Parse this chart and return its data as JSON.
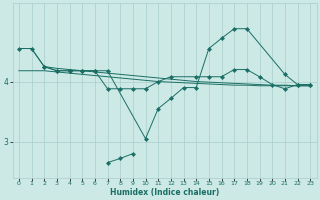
{
  "xlabel": "Humidex (Indice chaleur)",
  "bg_color": "#cce9e5",
  "grid_color": "#aacfcb",
  "line_color": "#1a6e65",
  "xlim": [
    -0.5,
    23.5
  ],
  "ylim": [
    2.4,
    5.3
  ],
  "yticks": [
    3,
    4
  ],
  "xticks": [
    0,
    1,
    2,
    3,
    4,
    5,
    6,
    7,
    8,
    9,
    10,
    11,
    12,
    13,
    14,
    15,
    16,
    17,
    18,
    19,
    20,
    21,
    22,
    23
  ],
  "line1_x": [
    0,
    1,
    2,
    3,
    4,
    5,
    6,
    7,
    10,
    11,
    12,
    13,
    14,
    15,
    16,
    17,
    18,
    21,
    22,
    23
  ],
  "line1_y": [
    4.55,
    4.55,
    4.25,
    4.18,
    4.18,
    4.18,
    4.18,
    4.18,
    3.05,
    3.55,
    3.72,
    3.9,
    3.9,
    4.55,
    4.72,
    4.88,
    4.88,
    4.12,
    3.95,
    3.95
  ],
  "line2_x": [
    2,
    3,
    4,
    5,
    6,
    7,
    8,
    9,
    10,
    11,
    12,
    14,
    15,
    16,
    17,
    18,
    19,
    20,
    21,
    22,
    23
  ],
  "line2_y": [
    4.25,
    4.18,
    4.18,
    4.18,
    4.18,
    3.88,
    3.88,
    3.88,
    3.88,
    4.0,
    4.08,
    4.08,
    4.08,
    4.08,
    4.2,
    4.2,
    4.08,
    3.95,
    3.88,
    3.95,
    3.95
  ],
  "line3a_x": [
    0,
    1,
    2,
    3,
    4,
    5,
    6,
    7,
    8,
    9,
    10,
    11,
    12,
    13,
    14,
    15,
    16,
    17,
    18,
    19,
    20,
    21,
    22,
    23
  ],
  "line3a_y": [
    4.55,
    4.55,
    4.25,
    4.22,
    4.2,
    4.18,
    4.16,
    4.14,
    4.12,
    4.1,
    4.08,
    4.06,
    4.04,
    4.02,
    4.0,
    3.99,
    3.98,
    3.97,
    3.96,
    3.95,
    3.94,
    3.94,
    3.93,
    3.93
  ],
  "line3b_x": [
    0,
    1,
    2,
    3,
    4,
    5,
    6,
    7,
    8,
    9,
    10,
    11,
    12,
    13,
    14,
    15,
    16,
    17,
    18,
    19,
    20,
    21,
    22,
    23
  ],
  "line3b_y": [
    4.18,
    4.18,
    4.18,
    4.16,
    4.14,
    4.12,
    4.1,
    4.08,
    4.06,
    4.04,
    4.02,
    4.0,
    3.99,
    3.98,
    3.97,
    3.96,
    3.95,
    3.94,
    3.94,
    3.93,
    3.93,
    3.93,
    3.93,
    3.93
  ],
  "line4_x": [
    7,
    8,
    9
  ],
  "line4_y": [
    2.65,
    2.72,
    2.8
  ]
}
